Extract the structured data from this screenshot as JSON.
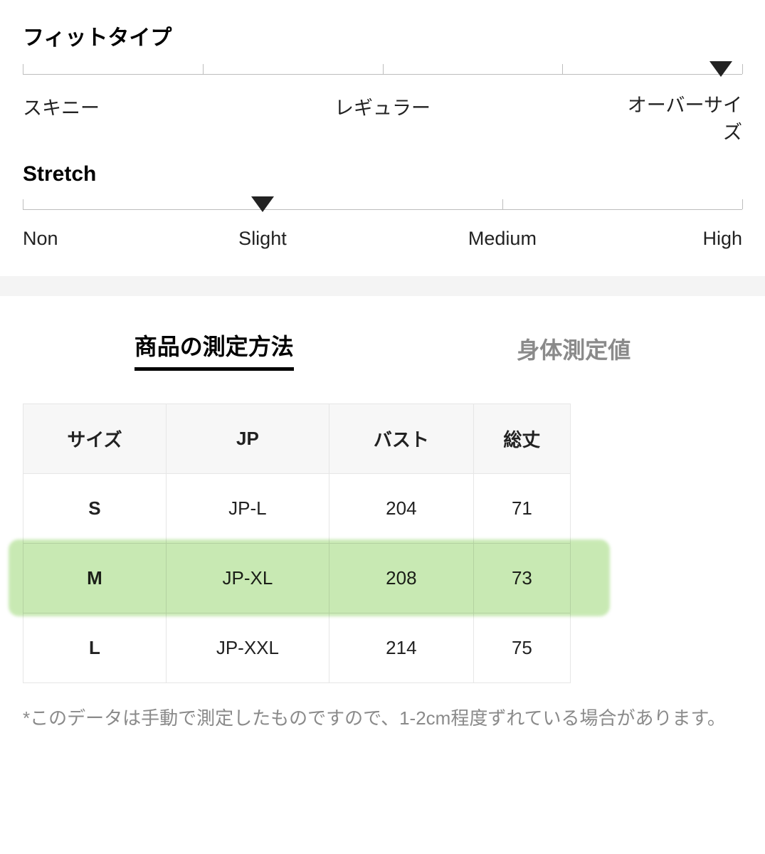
{
  "fit": {
    "title": "フィットタイプ",
    "labels": [
      "スキニー",
      "レギュラー",
      "オーバーサイズ"
    ],
    "ticks": [
      0,
      25,
      50,
      75,
      100
    ],
    "marker_percent": 97
  },
  "stretch": {
    "title": "Stretch",
    "labels": [
      "Non",
      "Slight",
      "Medium",
      "High"
    ],
    "ticks": [
      0,
      33.33,
      66.66,
      100
    ],
    "marker_percent": 33.33
  },
  "tabs": {
    "active": "商品の測定方法",
    "inactive": "身体測定値"
  },
  "table": {
    "columns": [
      "サイズ",
      "JP",
      "バスト",
      "総丈"
    ],
    "rows": [
      {
        "size": "S",
        "jp": "JP-L",
        "bust": "204",
        "length": "71",
        "highlighted": false
      },
      {
        "size": "M",
        "jp": "JP-XL",
        "bust": "208",
        "length": "73",
        "highlighted": true
      },
      {
        "size": "L",
        "jp": "JP-XXL",
        "bust": "214",
        "length": "75",
        "highlighted": false
      }
    ],
    "highlight_color": "#b6e29a",
    "border_color": "#e6e6e6",
    "header_bg": "#f7f7f7"
  },
  "footnote": "*このデータは手動で測定したものですので、1-2cm程度ずれている場合があります。"
}
